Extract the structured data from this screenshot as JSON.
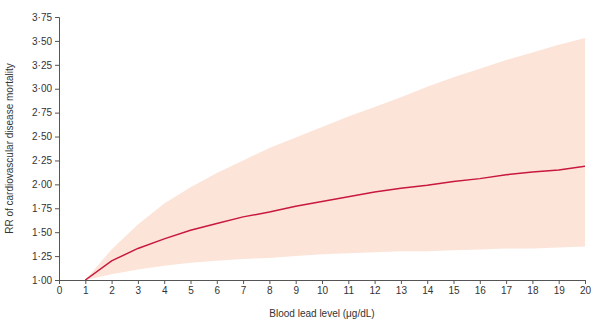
{
  "chart_data": {
    "type": "line",
    "x_label": "Blood lead level (μg/dL)",
    "y_label": "RR of cardiovascular disease mortality",
    "x": [
      1,
      2,
      3,
      4,
      5,
      6,
      7,
      8,
      9,
      10,
      11,
      12,
      13,
      14,
      15,
      16,
      17,
      18,
      19,
      20
    ],
    "series": [
      {
        "type": "area",
        "color": "#fde4d9",
        "lower": [
          1.0,
          1.06,
          1.11,
          1.15,
          1.18,
          1.2,
          1.22,
          1.23,
          1.25,
          1.27,
          1.28,
          1.29,
          1.3,
          1.3,
          1.31,
          1.32,
          1.33,
          1.33,
          1.34,
          1.35
        ],
        "upper": [
          1.0,
          1.32,
          1.58,
          1.8,
          1.97,
          2.12,
          2.25,
          2.38,
          2.49,
          2.6,
          2.71,
          2.81,
          2.91,
          3.02,
          3.12,
          3.21,
          3.3,
          3.38,
          3.46,
          3.53
        ]
      },
      {
        "type": "line",
        "color": "#c8183c",
        "values": [
          1.0,
          1.2,
          1.33,
          1.43,
          1.52,
          1.59,
          1.66,
          1.71,
          1.77,
          1.82,
          1.87,
          1.92,
          1.96,
          1.99,
          2.03,
          2.06,
          2.1,
          2.13,
          2.15,
          2.19
        ]
      }
    ],
    "xlim": [
      0,
      20
    ],
    "xticks": [
      0,
      1,
      2,
      3,
      4,
      5,
      6,
      7,
      8,
      9,
      10,
      11,
      12,
      13,
      14,
      15,
      16,
      17,
      18,
      19,
      20
    ],
    "ylim": [
      1,
      3.75
    ],
    "yticks": [
      {
        "value": 1,
        "label": "1·00"
      },
      {
        "value": 1.25,
        "label": "1·25"
      },
      {
        "value": 1.5,
        "label": "1·50"
      },
      {
        "value": 1.75,
        "label": "1·75"
      },
      {
        "value": 2,
        "label": "2·00"
      },
      {
        "value": 2.25,
        "label": "2·25"
      },
      {
        "value": 2.5,
        "label": "2·50"
      },
      {
        "value": 2.75,
        "label": "2·75"
      },
      {
        "value": 3,
        "label": "3·00"
      },
      {
        "value": 3.25,
        "label": "3·25"
      },
      {
        "value": 3.5,
        "label": "3·50"
      },
      {
        "value": 3.75,
        "label": "3·75"
      }
    ],
    "grid": false
  }
}
